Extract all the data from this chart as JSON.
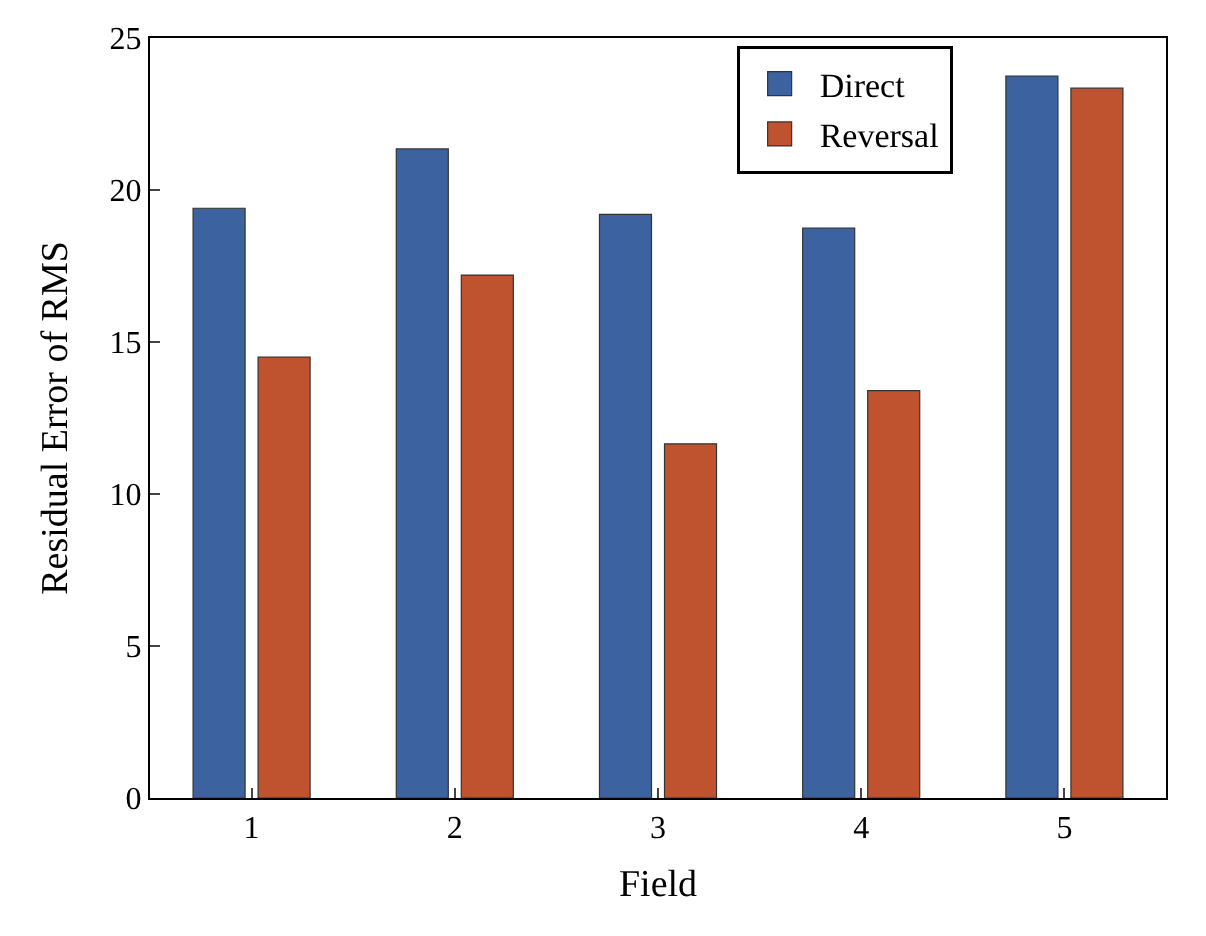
{
  "chart_data": {
    "type": "bar",
    "xlabel": "Field",
    "ylabel": "Residual Error of RMS",
    "categories": [
      "1",
      "2",
      "3",
      "4",
      "5"
    ],
    "series": [
      {
        "name": "Direct",
        "color": "#3c62a0",
        "values": [
          19.4,
          21.35,
          19.2,
          18.75,
          23.75
        ]
      },
      {
        "name": "Reversal",
        "color": "#c0532f",
        "values": [
          14.5,
          17.2,
          11.65,
          13.4,
          23.35
        ]
      }
    ],
    "ylim": [
      0,
      25
    ],
    "yticks": [
      0,
      5,
      10,
      15,
      20,
      25
    ],
    "legend": "top right"
  }
}
